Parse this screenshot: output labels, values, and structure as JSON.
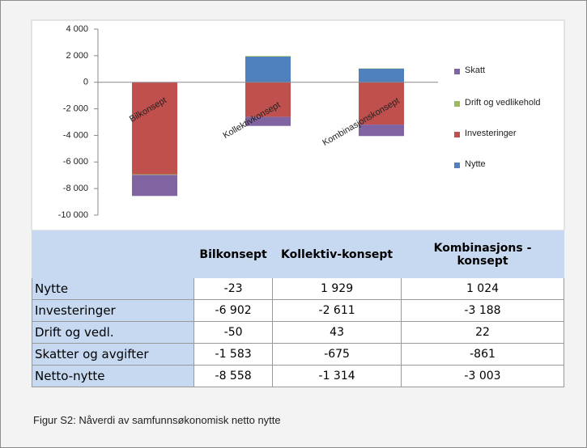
{
  "chart_data": {
    "type": "stacked_bar",
    "categories": [
      "Bilkonsept",
      "Kollektivkonsept",
      "Kombinasjonskonsept"
    ],
    "series": [
      {
        "name": "Nytte",
        "color": "#4f81bd",
        "values": [
          -23,
          1929,
          1024
        ]
      },
      {
        "name": "Investeringer",
        "color": "#c0504d",
        "values": [
          -6902,
          -2611,
          -3188
        ]
      },
      {
        "name": "Drift og vedlikehold",
        "color": "#9bbb59",
        "values": [
          -50,
          43,
          22
        ]
      },
      {
        "name": "Skatt",
        "color": "#8064a2",
        "values": [
          -1583,
          -675,
          -861
        ]
      }
    ],
    "ylim": [
      -10000,
      4000
    ],
    "yticks": [
      {
        "value": -10000,
        "label": "-10 000"
      },
      {
        "value": -8000,
        "label": "-8 000"
      },
      {
        "value": -6000,
        "label": "-6 000"
      },
      {
        "value": -4000,
        "label": "-4 000"
      },
      {
        "value": -2000,
        "label": "-2 000"
      },
      0,
      {
        "value": 2000,
        "label": "2 000"
      },
      {
        "value": 4000,
        "label": "4 000"
      }
    ],
    "legend": "right"
  },
  "table": {
    "header": [
      "Bilkonsept",
      "Kollektiv-konsept",
      "Kombinasjons -konsept"
    ],
    "rows": [
      [
        "Nytte",
        "-23",
        "1 929",
        "1 024"
      ],
      [
        "Investeringer",
        "-6 902",
        "-2 611",
        "-3 188"
      ],
      [
        "Drift og vedl.",
        "-50",
        "43",
        "22"
      ],
      [
        "Skatter og avgifter",
        "-1 583",
        "-675",
        "-861"
      ],
      [
        "Netto-nytte",
        "-8 558",
        "-1 314",
        "-3 003"
      ]
    ]
  },
  "caption": "Figur S2: Nåverdi av samfunnsøkonomisk netto nytte"
}
